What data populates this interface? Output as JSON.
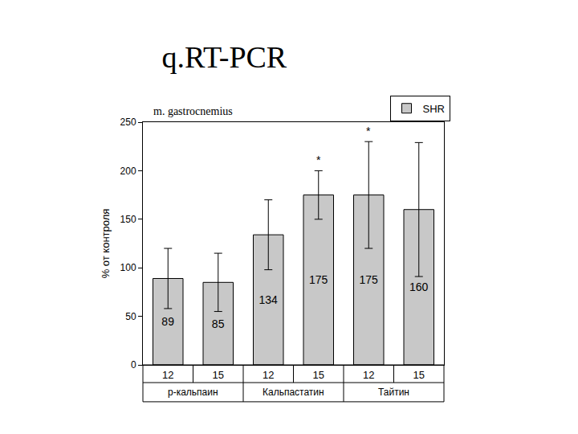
{
  "chart_data": {
    "type": "bar",
    "title": "q.RT-PCR",
    "annotation": "m. gastrocnemius",
    "y_label": "% от контроля",
    "categories": [
      "12",
      "15",
      "12",
      "15",
      "12",
      "15"
    ],
    "groups": [
      "р-кальпаин",
      "р-кальпаин",
      "Кальпастатин",
      "Кальпастатин",
      "Тайтин",
      "Тайтин"
    ],
    "series": [
      {
        "name": "SHR",
        "color": "#c8c8c8",
        "values": [
          89,
          85,
          134,
          175,
          175,
          160
        ],
        "errors": [
          31,
          30,
          36,
          25,
          55,
          69
        ]
      }
    ],
    "significant": [
      false,
      false,
      false,
      true,
      true,
      false
    ],
    "significance_mark": "*",
    "ylim": [
      0,
      250
    ],
    "yticks": [
      0,
      50,
      100,
      150,
      200,
      250
    ],
    "grid": false,
    "data_labels": true,
    "legend": "top right"
  }
}
